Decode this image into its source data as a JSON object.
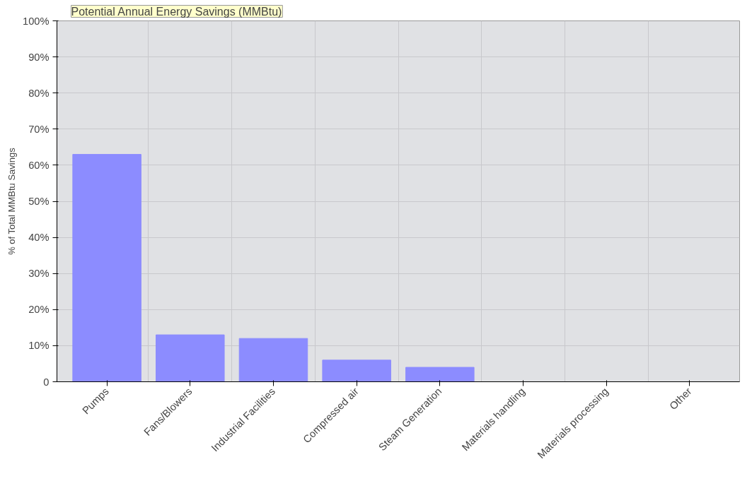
{
  "chart_data": {
    "type": "bar",
    "title": "Potential Annual Energy Savings (MMBtu)",
    "ylabel": "% of Total MMBtu Savings",
    "categories": [
      "Pumps",
      "Fans/Blowers",
      "Industrial Facilities",
      "Compressed air",
      "Steam Generation",
      "Materials handling",
      "Materials processing",
      "Other"
    ],
    "values": [
      63,
      13,
      12,
      6,
      4,
      0,
      0,
      0
    ],
    "color": "#8c8cff",
    "ylim": [
      0,
      100
    ],
    "yticks": [
      0,
      {
        "value": 10,
        "label": "10%"
      },
      {
        "value": 20,
        "label": "20%"
      },
      {
        "value": 30,
        "label": "30%"
      },
      {
        "value": 40,
        "label": "40%"
      },
      {
        "value": 50,
        "label": "50%"
      },
      {
        "value": 60,
        "label": "60%"
      },
      {
        "value": 70,
        "label": "70%"
      },
      {
        "value": 80,
        "label": "80%"
      },
      {
        "value": 90,
        "label": "90%"
      },
      {
        "value": 100,
        "label": "100%"
      }
    ],
    "grid": true
  }
}
